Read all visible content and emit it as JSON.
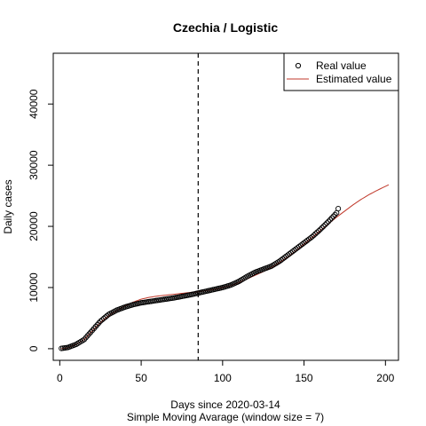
{
  "chart_data": {
    "type": "line",
    "title": "Czechia / Logistic",
    "xlabel": "Days since 2020-03-14",
    "subtitle": "Simple Moving Avarage (window size = 7)",
    "ylabel": "Daily cases",
    "xlim": [
      -4,
      208
    ],
    "ylim": [
      -1900,
      48300
    ],
    "x_ticks": [
      0,
      50,
      100,
      150,
      200
    ],
    "y_ticks": [
      0,
      10000,
      20000,
      30000,
      40000
    ],
    "x_tick_labels": [
      "0",
      "50",
      "100",
      "150",
      "200"
    ],
    "y_tick_labels": [
      "0",
      "10000",
      "20000",
      "30000",
      "40000"
    ],
    "vline_x": 85,
    "legend": {
      "position": "top-right",
      "entries": [
        "Real value",
        "Estimated value"
      ]
    },
    "series": [
      {
        "name": "Real value",
        "style": "points",
        "color": "#000000",
        "x_start": 1,
        "x_end": 171,
        "knots": [
          [
            1,
            50
          ],
          [
            5,
            200
          ],
          [
            10,
            700
          ],
          [
            15,
            1500
          ],
          [
            20,
            3000
          ],
          [
            25,
            4500
          ],
          [
            30,
            5600
          ],
          [
            35,
            6300
          ],
          [
            40,
            6800
          ],
          [
            45,
            7200
          ],
          [
            50,
            7500
          ],
          [
            55,
            7700
          ],
          [
            60,
            7900
          ],
          [
            70,
            8300
          ],
          [
            80,
            8800
          ],
          [
            85,
            9100
          ],
          [
            90,
            9400
          ],
          [
            95,
            9700
          ],
          [
            100,
            10000
          ],
          [
            105,
            10400
          ],
          [
            110,
            11000
          ],
          [
            115,
            11800
          ],
          [
            120,
            12500
          ],
          [
            125,
            13000
          ],
          [
            130,
            13500
          ],
          [
            135,
            14300
          ],
          [
            140,
            15300
          ],
          [
            145,
            16300
          ],
          [
            150,
            17300
          ],
          [
            155,
            18300
          ],
          [
            160,
            19500
          ],
          [
            165,
            20800
          ],
          [
            170,
            22200
          ],
          [
            171,
            22900
          ]
        ]
      },
      {
        "name": "Estimated value",
        "style": "line",
        "color": "#c0392b",
        "x_start": 1,
        "x_end": 202,
        "knots": [
          [
            1,
            0
          ],
          [
            5,
            150
          ],
          [
            10,
            700
          ],
          [
            15,
            1500
          ],
          [
            20,
            2900
          ],
          [
            25,
            4300
          ],
          [
            30,
            5400
          ],
          [
            35,
            6200
          ],
          [
            40,
            7000
          ],
          [
            45,
            7600
          ],
          [
            50,
            8100
          ],
          [
            55,
            8400
          ],
          [
            60,
            8600
          ],
          [
            70,
            8900
          ],
          [
            80,
            9200
          ],
          [
            85,
            9300
          ],
          [
            90,
            9500
          ],
          [
            95,
            9700
          ],
          [
            100,
            10000
          ],
          [
            105,
            10300
          ],
          [
            110,
            10800
          ],
          [
            115,
            11400
          ],
          [
            120,
            12000
          ],
          [
            125,
            12600
          ],
          [
            130,
            13300
          ],
          [
            135,
            14100
          ],
          [
            140,
            15000
          ],
          [
            145,
            16000
          ],
          [
            150,
            17100
          ],
          [
            155,
            18200
          ],
          [
            160,
            19300
          ],
          [
            165,
            20400
          ],
          [
            170,
            21500
          ],
          [
            175,
            22500
          ],
          [
            180,
            23500
          ],
          [
            185,
            24400
          ],
          [
            190,
            25200
          ],
          [
            195,
            25900
          ],
          [
            202,
            26800
          ]
        ]
      }
    ]
  }
}
